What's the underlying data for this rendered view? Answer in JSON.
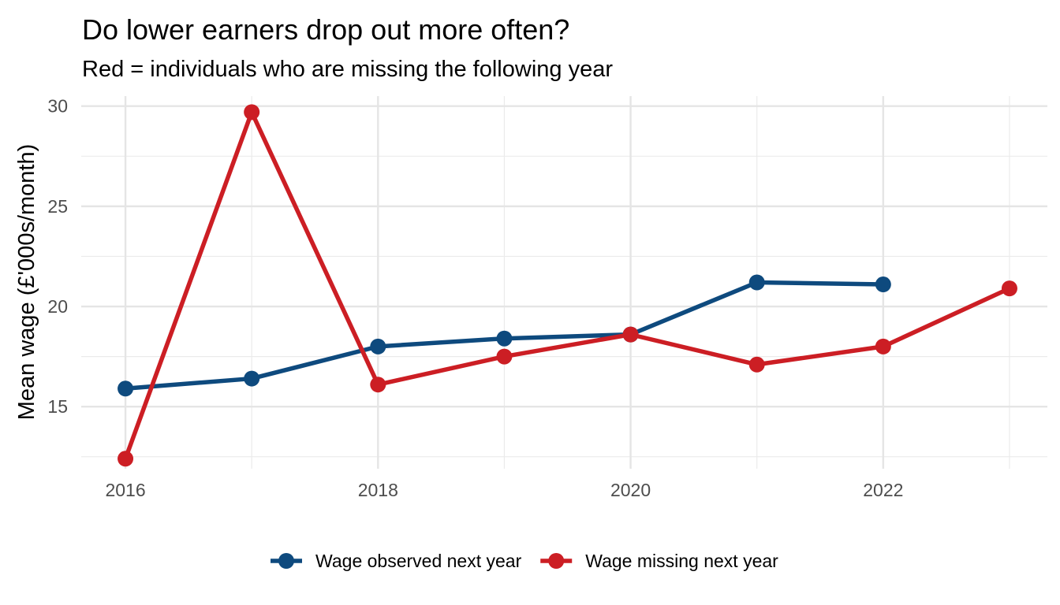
{
  "chart_data": {
    "type": "line",
    "title": "Do lower earners drop out more often?",
    "subtitle": "Red = individuals who are missing the following year",
    "xlabel": "",
    "ylabel": "Mean wage (£'000s/month)",
    "xlim": [
      2015.65,
      2023.3
    ],
    "ylim": [
      11.9,
      30.5
    ],
    "x_ticks": [
      2016,
      2018,
      2020,
      2022
    ],
    "y_ticks": [
      15,
      20,
      25,
      30
    ],
    "grid": true,
    "legend_position": "bottom",
    "series": [
      {
        "name": "Wage observed next year",
        "color": "#0e4a7e",
        "x": [
          2016,
          2017,
          2018,
          2019,
          2020,
          2021,
          2022
        ],
        "values": [
          15.9,
          16.4,
          18.0,
          18.4,
          18.6,
          21.2,
          21.1
        ]
      },
      {
        "name": "Wage missing next year",
        "color": "#cc1e24",
        "x": [
          2016,
          2017,
          2018,
          2019,
          2020,
          2021,
          2022,
          2023
        ],
        "values": [
          12.4,
          29.7,
          16.1,
          17.5,
          18.6,
          17.1,
          18.0,
          20.9
        ]
      }
    ]
  }
}
